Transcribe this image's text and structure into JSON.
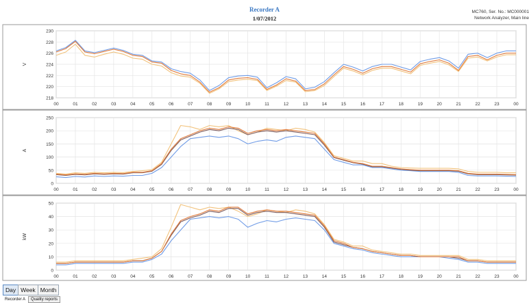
{
  "header": {
    "title": "Recorder A",
    "date": "1/07/2012",
    "device_line1": "MC760, Ser. No.: MC000001",
    "device_line2": "Network Analyzer, Main line"
  },
  "period_tabs": [
    "Day",
    "Week",
    "Month"
  ],
  "bottom_tabs": [
    "Recorder A",
    "Quality reports"
  ],
  "colors": {
    "series1": "#6f9be6",
    "series2": "#e07a3a",
    "series3": "#f2c27b",
    "series4": "#7d5a5a"
  },
  "chart_data": [
    {
      "type": "line",
      "ylabel": "V",
      "ylim": [
        218,
        230
      ],
      "yticks": [
        218,
        220,
        222,
        224,
        226,
        228,
        230
      ],
      "xticks": [
        "00",
        "01",
        "02",
        "03",
        "04",
        "05",
        "06",
        "07",
        "08",
        "09",
        "10",
        "11",
        "12",
        "13",
        "14",
        "15",
        "16",
        "17",
        "18",
        "19",
        "20",
        "21",
        "22",
        "23",
        "00"
      ],
      "grid": true,
      "x_hours": [
        0,
        0.5,
        1,
        1.5,
        2,
        2.5,
        3,
        3.5,
        4,
        4.5,
        5,
        5.5,
        6,
        6.5,
        7,
        7.5,
        8,
        8.5,
        9,
        9.5,
        10,
        10.5,
        11,
        11.5,
        12,
        12.5,
        13,
        13.5,
        14,
        14.5,
        15,
        15.5,
        16,
        16.5,
        17,
        17.5,
        18,
        18.5,
        19,
        19.5,
        20,
        20.5,
        21,
        21.5,
        22,
        22.5,
        23,
        23.5,
        24
      ],
      "series": [
        {
          "values": [
            226.4,
            227.0,
            228.3,
            226.4,
            226.1,
            226.5,
            226.9,
            226.5,
            225.8,
            225.6,
            224.6,
            224.4,
            223.2,
            222.7,
            222.4,
            221.2,
            219.3,
            220.2,
            221.6,
            221.9,
            222.0,
            221.7,
            219.8,
            220.7,
            221.8,
            221.4,
            219.6,
            219.9,
            220.9,
            222.5,
            224.0,
            223.5,
            222.8,
            223.6,
            224.0,
            224.0,
            223.5,
            223.0,
            224.5,
            224.9,
            225.2,
            224.6,
            223.3,
            225.8,
            226.0,
            225.2,
            226.0,
            226.4,
            226.4
          ]
        },
        {
          "values": [
            226.2,
            226.8,
            228.1,
            226.2,
            225.9,
            226.3,
            226.7,
            226.3,
            225.6,
            225.4,
            224.4,
            224.2,
            222.9,
            222.3,
            222.0,
            220.8,
            219.0,
            219.8,
            221.2,
            221.5,
            221.6,
            221.3,
            219.5,
            220.3,
            221.4,
            221.0,
            219.3,
            219.5,
            220.5,
            222.1,
            223.6,
            223.1,
            222.4,
            223.2,
            223.6,
            223.6,
            223.1,
            222.6,
            224.1,
            224.5,
            224.8,
            224.2,
            222.9,
            225.4,
            225.6,
            224.8,
            225.6,
            226.0,
            226.0
          ]
        },
        {
          "values": [
            225.6,
            226.2,
            227.6,
            225.6,
            225.3,
            225.8,
            226.2,
            225.8,
            225.1,
            224.9,
            224.0,
            223.7,
            222.5,
            221.9,
            221.7,
            220.6,
            218.8,
            219.6,
            220.9,
            221.2,
            221.3,
            221.1,
            219.3,
            220.1,
            221.1,
            220.8,
            219.1,
            219.3,
            220.2,
            221.8,
            223.3,
            222.8,
            222.1,
            222.9,
            223.3,
            223.3,
            222.8,
            222.3,
            223.8,
            224.2,
            224.5,
            223.9,
            222.7,
            225.1,
            225.3,
            224.6,
            225.3,
            225.7,
            225.7
          ]
        }
      ]
    },
    {
      "type": "line",
      "ylabel": "A",
      "ylim": [
        0,
        250
      ],
      "yticks": [
        0,
        50,
        100,
        150,
        200,
        250
      ],
      "xticks": [
        "00",
        "01",
        "02",
        "03",
        "04",
        "05",
        "06",
        "07",
        "08",
        "09",
        "10",
        "11",
        "12",
        "13",
        "14",
        "15",
        "16",
        "17",
        "18",
        "19",
        "20",
        "21",
        "22",
        "23",
        "00"
      ],
      "grid": true,
      "x_hours": [
        0,
        0.5,
        1,
        1.5,
        2,
        2.5,
        3,
        3.5,
        4,
        4.5,
        5,
        5.5,
        6,
        6.5,
        7,
        7.5,
        8,
        8.5,
        9,
        9.5,
        10,
        10.5,
        11,
        11.5,
        12,
        12.5,
        13,
        13.5,
        14,
        14.5,
        15,
        15.5,
        16,
        16.5,
        17,
        17.5,
        18,
        18.5,
        19,
        19.5,
        20,
        20.5,
        21,
        21.5,
        22,
        22.5,
        23,
        23.5,
        24
      ],
      "series": [
        {
          "values": [
            25,
            22,
            26,
            24,
            28,
            26,
            28,
            27,
            30,
            30,
            38,
            60,
            100,
            140,
            170,
            175,
            180,
            175,
            180,
            170,
            150,
            160,
            165,
            160,
            175,
            180,
            175,
            170,
            130,
            90,
            80,
            70,
            70,
            60,
            60,
            55,
            50,
            48,
            45,
            45,
            45,
            45,
            42,
            30,
            28,
            28,
            28,
            27,
            26
          ]
        },
        {
          "values": [
            35,
            32,
            36,
            34,
            38,
            36,
            38,
            37,
            42,
            42,
            48,
            75,
            130,
            170,
            185,
            200,
            210,
            205,
            215,
            210,
            190,
            200,
            205,
            200,
            205,
            200,
            195,
            190,
            150,
            100,
            90,
            80,
            75,
            65,
            65,
            60,
            55,
            52,
            50,
            50,
            50,
            50,
            48,
            38,
            35,
            35,
            35,
            34,
            33
          ]
        },
        {
          "values": [
            38,
            35,
            40,
            38,
            42,
            40,
            42,
            41,
            45,
            48,
            52,
            80,
            150,
            220,
            215,
            205,
            220,
            215,
            220,
            200,
            185,
            195,
            210,
            205,
            200,
            210,
            205,
            195,
            155,
            105,
            95,
            85,
            85,
            75,
            75,
            65,
            60,
            58,
            57,
            57,
            57,
            57,
            55,
            45,
            42,
            42,
            42,
            40,
            40
          ]
        },
        {
          "values": [
            33,
            30,
            34,
            32,
            36,
            34,
            36,
            35,
            40,
            40,
            46,
            72,
            125,
            165,
            180,
            195,
            205,
            200,
            210,
            205,
            185,
            195,
            200,
            195,
            200,
            195,
            190,
            185,
            145,
            98,
            88,
            78,
            73,
            63,
            63,
            58,
            53,
            50,
            48,
            48,
            48,
            48,
            46,
            36,
            33,
            33,
            33,
            32,
            31
          ]
        }
      ]
    },
    {
      "type": "line",
      "ylabel": "kW",
      "ylim": [
        0,
        50
      ],
      "yticks": [
        0,
        10,
        20,
        30,
        40,
        50
      ],
      "xticks": [
        "00",
        "01",
        "02",
        "03",
        "04",
        "05",
        "06",
        "07",
        "08",
        "09",
        "10",
        "11",
        "12",
        "13",
        "14",
        "15",
        "16",
        "17",
        "18",
        "19",
        "20",
        "21",
        "22",
        "23",
        "00"
      ],
      "grid": true,
      "x_hours": [
        0,
        0.5,
        1,
        1.5,
        2,
        2.5,
        3,
        3.5,
        4,
        4.5,
        5,
        5.5,
        6,
        6.5,
        7,
        7.5,
        8,
        8.5,
        9,
        9.5,
        10,
        10.5,
        11,
        11.5,
        12,
        12.5,
        13,
        13.5,
        14,
        14.5,
        15,
        15.5,
        16,
        16.5,
        17,
        17.5,
        18,
        18.5,
        19,
        19.5,
        20,
        20.5,
        21,
        21.5,
        22,
        22.5,
        23,
        23.5,
        24
      ],
      "series": [
        {
          "values": [
            4,
            4,
            5,
            5,
            5,
            5,
            5,
            5,
            6,
            6,
            8,
            12,
            22,
            30,
            38,
            39,
            40,
            39,
            40,
            38,
            32,
            35,
            37,
            36,
            38,
            39,
            38,
            37,
            30,
            20,
            18,
            16,
            15,
            13,
            12,
            11,
            10,
            10,
            10,
            10,
            10,
            9,
            8,
            6,
            6,
            5,
            5,
            5,
            5
          ]
        },
        {
          "values": [
            5,
            5,
            6,
            6,
            6,
            6,
            6,
            6,
            7,
            7,
            9,
            14,
            27,
            37,
            40,
            42,
            45,
            44,
            47,
            47,
            42,
            44,
            45,
            44,
            44,
            43,
            42,
            41,
            33,
            22,
            20,
            17,
            16,
            14,
            13,
            12,
            11,
            11,
            10,
            10,
            10,
            10,
            10,
            7,
            7,
            6,
            6,
            6,
            6
          ]
        },
        {
          "values": [
            6,
            6,
            7,
            7,
            7,
            7,
            7,
            7,
            8,
            9,
            10,
            16,
            32,
            49,
            47,
            45,
            47,
            46,
            47,
            44,
            40,
            42,
            45,
            44,
            43,
            45,
            44,
            42,
            34,
            23,
            21,
            18,
            18,
            15,
            14,
            13,
            12,
            12,
            11,
            11,
            11,
            11,
            11,
            8,
            8,
            7,
            7,
            7,
            7
          ]
        },
        {
          "values": [
            5,
            5,
            6,
            6,
            6,
            6,
            6,
            6,
            7,
            7,
            9,
            14,
            26,
            36,
            39,
            41,
            44,
            43,
            46,
            46,
            41,
            43,
            44,
            43,
            43,
            42,
            41,
            40,
            32,
            21,
            19,
            17,
            16,
            14,
            13,
            12,
            11,
            11,
            10,
            10,
            10,
            10,
            9,
            7,
            7,
            6,
            6,
            6,
            6
          ]
        }
      ]
    }
  ]
}
